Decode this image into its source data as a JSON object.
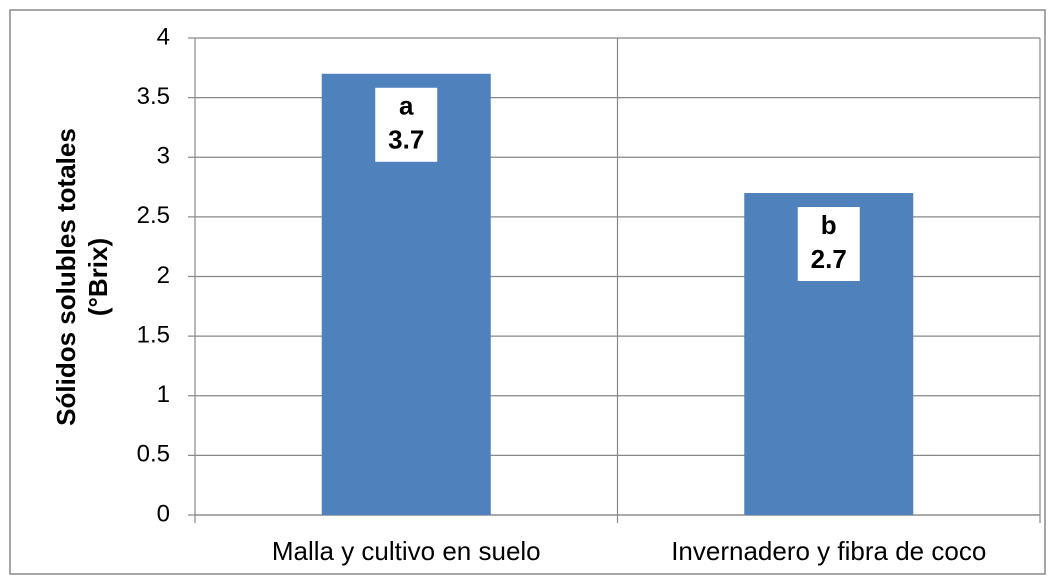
{
  "chart_data": {
    "type": "bar",
    "ylabel": [
      "Sólidos solubles totales",
      "(°Brix)"
    ],
    "categories": [
      "Malla y cultivo en suelo",
      "Invernadero y fibra de coco"
    ],
    "values": [
      3.7,
      2.7
    ],
    "annotations": [
      "a",
      "b"
    ],
    "color": "#4f81bd",
    "ylim": [
      0,
      4
    ],
    "yticks": [
      0,
      0.5,
      1,
      1.5,
      2,
      2.5,
      3,
      3.5,
      4
    ],
    "grid": true
  }
}
